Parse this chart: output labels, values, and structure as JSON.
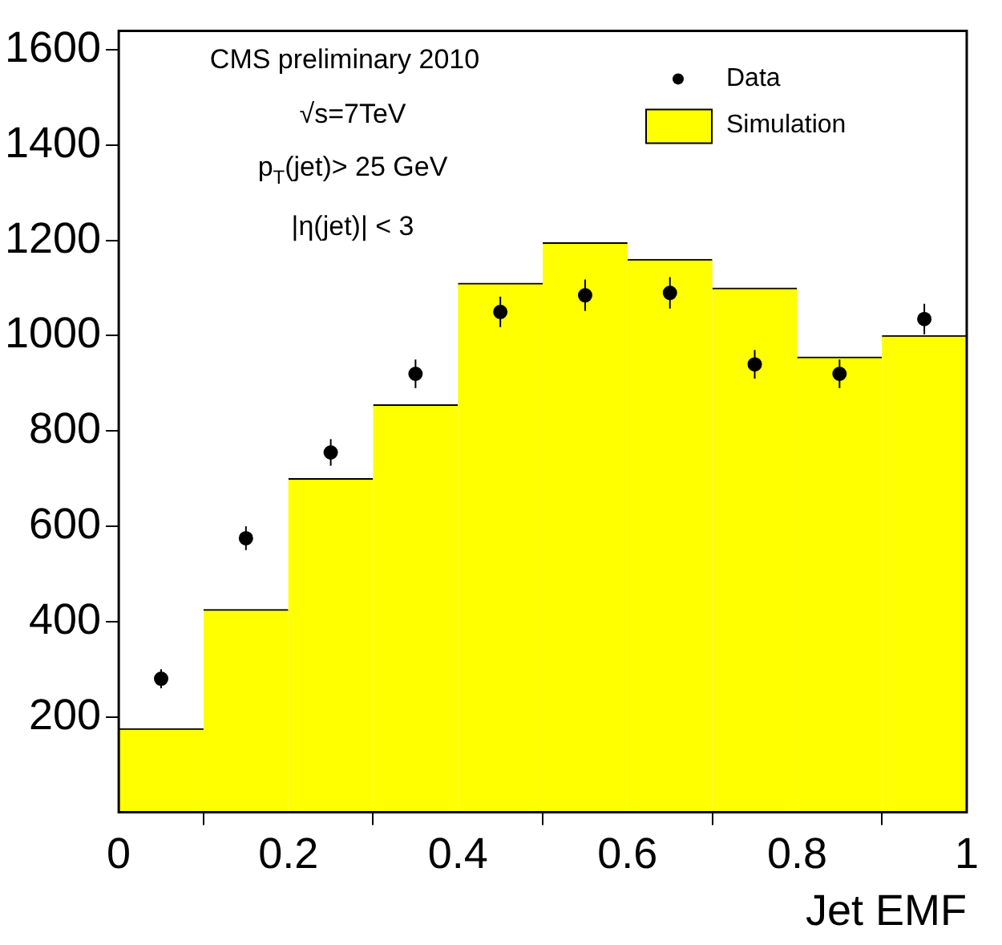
{
  "chart_data": {
    "type": "histogram",
    "xlabel": "Jet EMF",
    "xlim": [
      0,
      1
    ],
    "xticks": [
      0,
      0.2,
      0.4,
      0.6,
      0.8,
      1
    ],
    "ylim": [
      0,
      1640
    ],
    "yticks": [
      200,
      400,
      600,
      800,
      1000,
      1200,
      1400,
      1600
    ],
    "grid": false,
    "legend": "top right",
    "marker": "circle",
    "annotations": [
      "CMS preliminary 2010",
      "√s=7TeV",
      "p$_{T}$(jet)> 25 GeV",
      "|η(jet)| < 3"
    ],
    "series": [
      {
        "name": "Simulation",
        "color": "#ffff00",
        "bins": [
          0,
          0.1,
          0.2,
          0.3,
          0.4,
          0.5,
          0.6,
          0.7,
          0.8,
          0.9,
          1
        ],
        "values": [
          175,
          425,
          700,
          855,
          1110,
          1195,
          1160,
          1100,
          955,
          1000
        ]
      },
      {
        "type": "scatter",
        "name": "Data",
        "color": "#000000",
        "x": [
          0.05,
          0.15,
          0.25,
          0.35,
          0.45,
          0.55,
          0.65,
          0.75,
          0.85,
          0.95
        ],
        "values": [
          280,
          575,
          755,
          920,
          1050,
          1085,
          1090,
          940,
          920,
          1035
        ],
        "errors": [
          20,
          25,
          28,
          30,
          32,
          33,
          33,
          30,
          30,
          32
        ]
      }
    ]
  }
}
